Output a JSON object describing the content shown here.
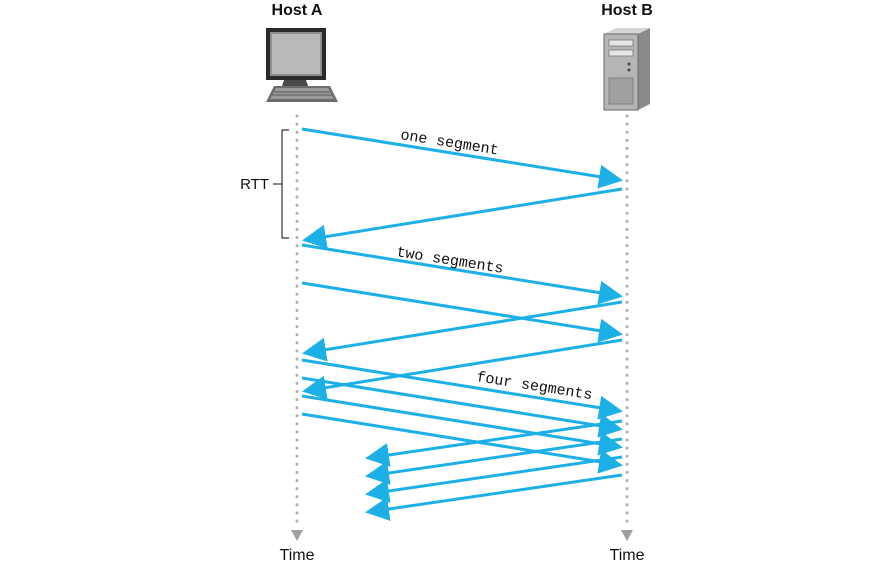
{
  "hosts": {
    "a": {
      "label": "Host A",
      "device": "desktop-computer-icon"
    },
    "b": {
      "label": "Host B",
      "device": "server-tower-icon"
    }
  },
  "axis": {
    "time_label": "Time"
  },
  "rtt_label": "RTT",
  "segment_labels": {
    "one": "one segment",
    "two": "two segments",
    "four": "four segments"
  },
  "colors": {
    "arrow": "#1cb0e6",
    "timeline": "#b0b0b0",
    "text": "#111111"
  }
}
